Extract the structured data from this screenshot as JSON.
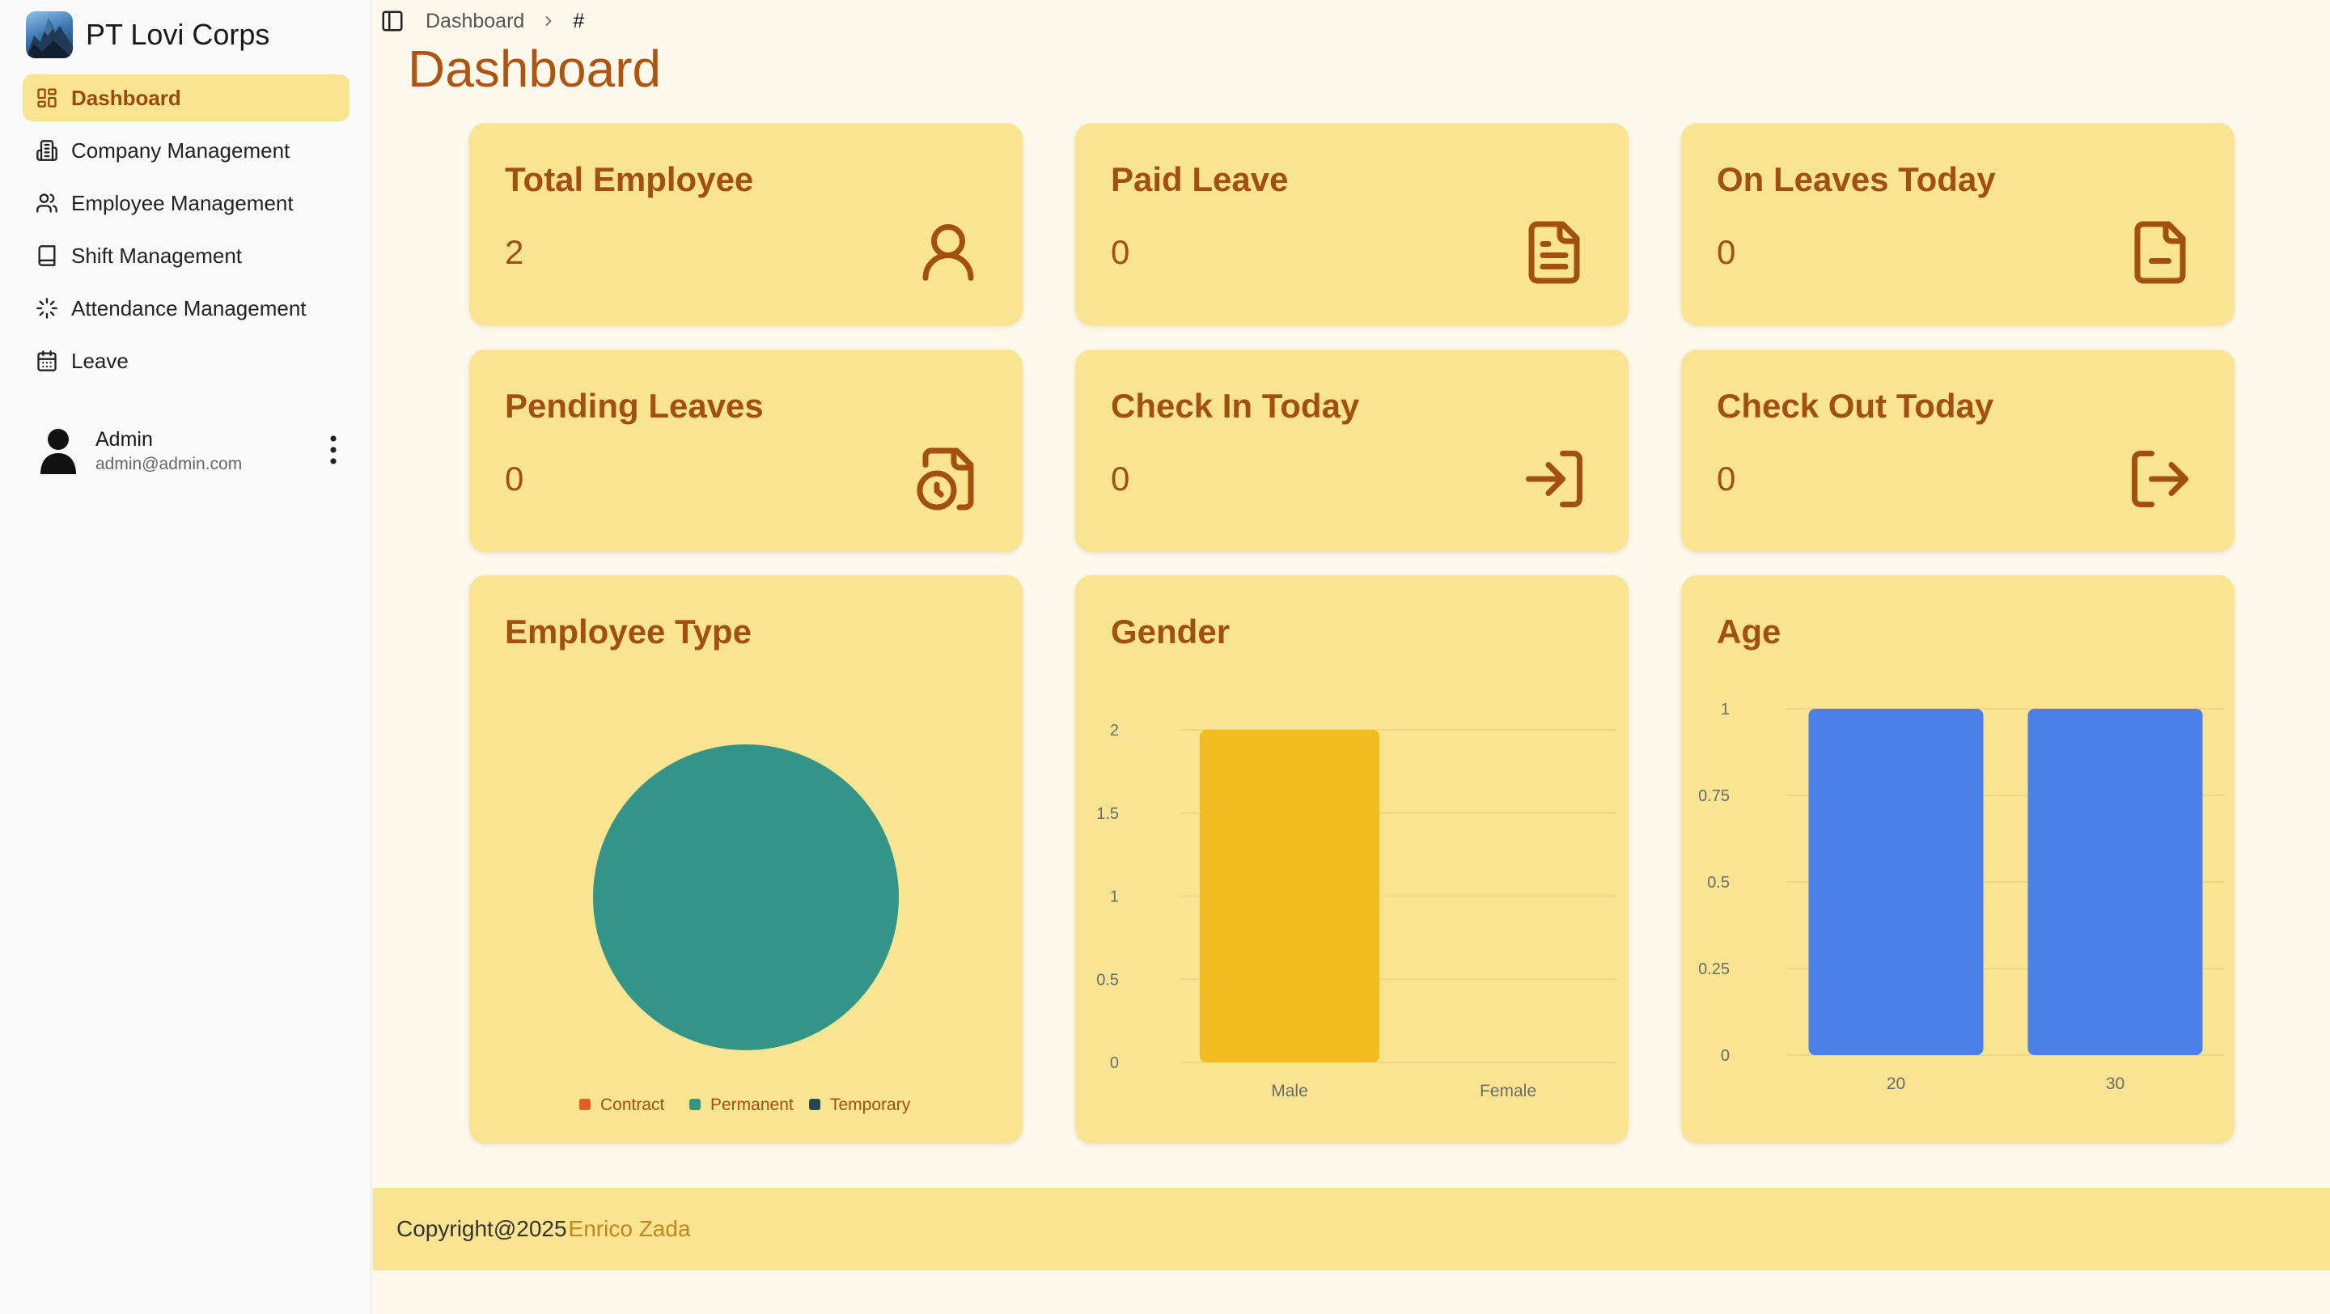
{
  "brand": {
    "name": "PT Lovi Corps"
  },
  "sidebar": {
    "items": [
      {
        "label": "Dashboard",
        "icon": "dashboard-icon",
        "active": true
      },
      {
        "label": "Company Management",
        "icon": "building-icon"
      },
      {
        "label": "Employee Management",
        "icon": "users-icon"
      },
      {
        "label": "Shift Management",
        "icon": "book-icon"
      },
      {
        "label": "Attendance Management",
        "icon": "loader-icon"
      },
      {
        "label": "Leave",
        "icon": "calendar-icon"
      }
    ]
  },
  "user": {
    "name": "Admin",
    "email": "admin@admin.com"
  },
  "breadcrumb": {
    "parent": "Dashboard",
    "current": "#"
  },
  "page": {
    "title": "Dashboard"
  },
  "stats": [
    {
      "title": "Total Employee",
      "value": "2",
      "icon": "user-icon"
    },
    {
      "title": "Paid Leave",
      "value": "0",
      "icon": "file-text-icon"
    },
    {
      "title": "On Leaves Today",
      "value": "0",
      "icon": "file-minus-icon"
    },
    {
      "title": "Pending Leaves",
      "value": "0",
      "icon": "file-clock-icon"
    },
    {
      "title": "Check In Today",
      "value": "0",
      "icon": "log-in-icon"
    },
    {
      "title": "Check Out Today",
      "value": "0",
      "icon": "log-out-icon"
    }
  ],
  "colors": {
    "accent": "#a3500f",
    "card_bg": "#f9e591",
    "active_nav_bg": "#f9e591",
    "footer_author": "#c7841a"
  },
  "chart_data": [
    {
      "type": "pie",
      "title": "Employee Type",
      "categories": [
        "Contract",
        "Permanent",
        "Temporary"
      ],
      "values": [
        0,
        2,
        0
      ],
      "colors": [
        "#e85d1e",
        "#339488",
        "#264653"
      ],
      "legend": "bottom"
    },
    {
      "type": "bar",
      "title": "Gender",
      "categories": [
        "Male",
        "Female"
      ],
      "values": [
        2,
        0
      ],
      "ylim": [
        0,
        2
      ],
      "yticks": [
        "0",
        "0.5",
        "1",
        "1.5",
        "2"
      ],
      "color": "#f2bb1e",
      "grid": true
    },
    {
      "type": "bar",
      "title": "Age",
      "categories": [
        "20",
        "30"
      ],
      "values": [
        1,
        1
      ],
      "ylim": [
        0,
        1
      ],
      "yticks": [
        "0",
        "0.25",
        "0.5",
        "0.75",
        "1"
      ],
      "color": "#4b80ea",
      "grid": true
    }
  ],
  "footer": {
    "copyright": "Copyright@2025",
    "author": "Enrico Zada"
  }
}
